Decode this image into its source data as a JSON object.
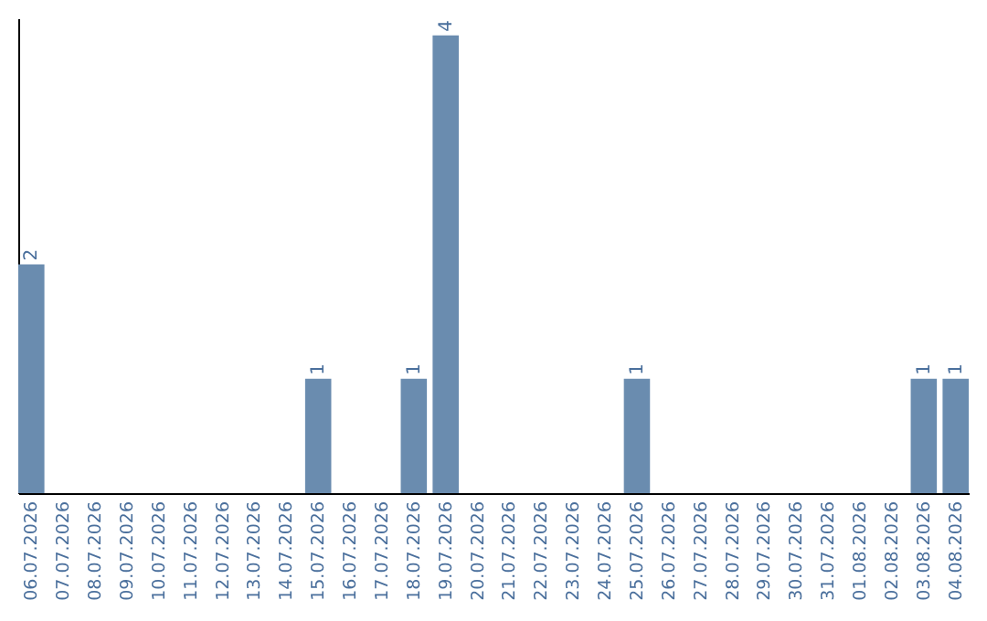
{
  "chart_data": {
    "type": "bar",
    "categories": [
      "06.07.2026",
      "07.07.2026",
      "08.07.2026",
      "09.07.2026",
      "10.07.2026",
      "11.07.2026",
      "12.07.2026",
      "13.07.2026",
      "14.07.2026",
      "15.07.2026",
      "16.07.2026",
      "17.07.2026",
      "18.07.2026",
      "19.07.2026",
      "20.07.2026",
      "21.07.2026",
      "22.07.2026",
      "23.07.2026",
      "24.07.2026",
      "25.07.2026",
      "26.07.2026",
      "27.07.2026",
      "28.07.2026",
      "29.07.2026",
      "30.07.2026",
      "31.07.2026",
      "01.08.2026",
      "02.08.2026",
      "03.08.2026",
      "04.08.2026"
    ],
    "values": [
      2,
      0,
      0,
      0,
      0,
      0,
      0,
      0,
      0,
      1,
      0,
      0,
      1,
      4,
      0,
      0,
      0,
      0,
      0,
      1,
      0,
      0,
      0,
      0,
      0,
      0,
      0,
      0,
      1,
      1
    ],
    "value_labels": [
      "2",
      null,
      null,
      null,
      null,
      null,
      null,
      null,
      null,
      "1",
      null,
      null,
      "1",
      "4",
      null,
      null,
      null,
      null,
      null,
      "1",
      null,
      null,
      null,
      null,
      null,
      null,
      null,
      null,
      "1",
      "1"
    ],
    "color": "#6a8caf",
    "ylim": [
      0,
      4.15
    ],
    "tick_labels": "x"
  }
}
